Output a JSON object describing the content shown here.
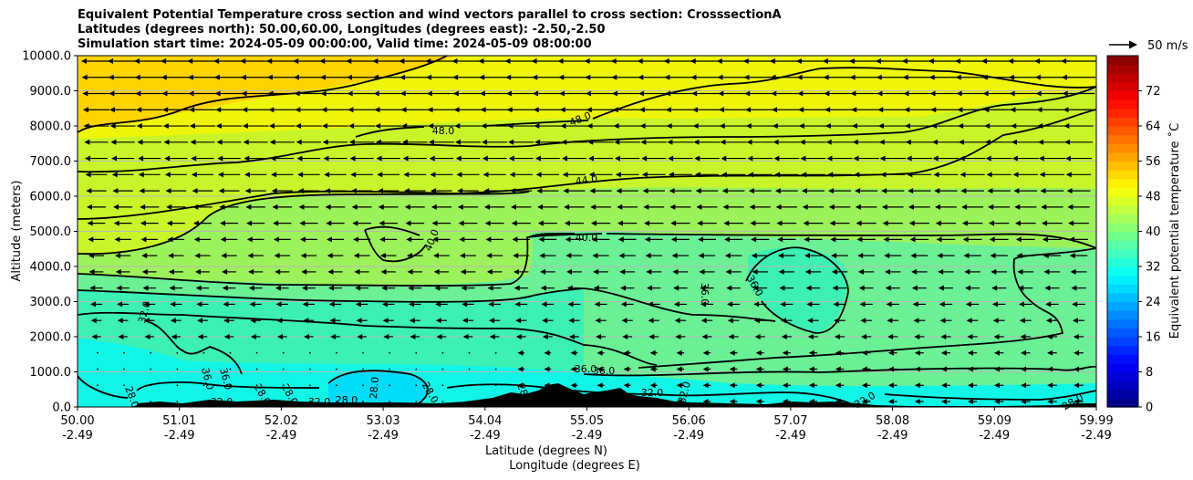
{
  "chart_data": {
    "type": "heatmap",
    "title_lines": [
      "Equivalent Potential Temperature cross section and wind vectors parallel to cross section: CrosssectionA",
      "Latitudes (degrees north): 50.00,60.00, Longitudes (degrees east): -2.50,-2.50",
      "Simulation start time: 2024-05-09 00:00:00, Valid time: 2024-05-09 08:00:00"
    ],
    "ylabel": "Altitude (meters)",
    "xlabel_lines": [
      "Latitude (degrees N)",
      "Longitude (degrees E)"
    ],
    "ylim": [
      0,
      10000
    ],
    "yticks": [
      "0.0",
      "1000.0",
      "2000.0",
      "3000.0",
      "4000.0",
      "5000.0",
      "6000.0",
      "7000.0",
      "8000.0",
      "9000.0",
      "10000.0"
    ],
    "xticks": [
      {
        "lat": "50.00",
        "lon": "-2.49"
      },
      {
        "lat": "51.01",
        "lon": "-2.49"
      },
      {
        "lat": "52.02",
        "lon": "-2.49"
      },
      {
        "lat": "53.03",
        "lon": "-2.49"
      },
      {
        "lat": "54.04",
        "lon": "-2.49"
      },
      {
        "lat": "55.05",
        "lon": "-2.49"
      },
      {
        "lat": "56.06",
        "lon": "-2.49"
      },
      {
        "lat": "57.07",
        "lon": "-2.49"
      },
      {
        "lat": "58.08",
        "lon": "-2.49"
      },
      {
        "lat": "59.09",
        "lon": "-2.49"
      },
      {
        "lat": "59.99",
        "lon": "-2.49"
      }
    ],
    "colorbar": {
      "label": "Equivalent potential temperature ˚C",
      "range": [
        0,
        80
      ],
      "ticks": [
        "0",
        "8",
        "16",
        "24",
        "32",
        "40",
        "48",
        "56",
        "64",
        "72"
      ]
    },
    "wind_key_label": "50 m/s",
    "contour_levels": [
      28,
      32,
      36,
      40,
      44,
      48
    ],
    "contour_labels": [
      "48.0",
      "48.0",
      "44.0",
      "40.0",
      "40.0",
      "36.0",
      "36.0",
      "36.0",
      "36.0",
      "32.0",
      "32.0",
      "36.0",
      "36.0",
      "28.0",
      "28.0",
      "28.0",
      "28.0",
      "28.0",
      "28.0",
      "28.0",
      "28.0",
      "32.0",
      "32.0",
      "32.0",
      "32.0",
      "28.0"
    ],
    "colors": {
      "c28": "#12f5e6",
      "c32": "#3cf0b4",
      "c36": "#6bf096",
      "c40": "#9cf25a",
      "c44": "#c8f52a",
      "c48": "#eef50a",
      "c52": "#ffd400",
      "c30": "#00dcf5"
    }
  }
}
